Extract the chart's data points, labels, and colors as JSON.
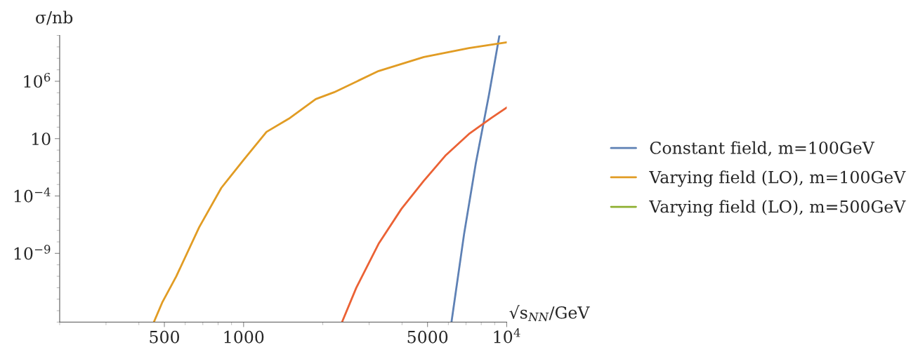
{
  "chart_data": {
    "type": "line",
    "xlabel": "√s$_{NN}$/GeV",
    "ylabel": "σ/nb",
    "log": "xy",
    "xlim": [
      200,
      10000
    ],
    "ylim": [
      1e-15,
      10000000000.0
    ],
    "xticks": [
      500,
      1000,
      5000,
      {
        "value": 10000,
        "label": "10$^{4}$"
      }
    ],
    "yticks": [
      {
        "value": 1000000.0,
        "label": "10$^{6}$"
      },
      10,
      {
        "value": 0.0001,
        "label": "10$^{−4}$"
      },
      {
        "value": 1e-09,
        "label": "10$^{−9}$"
      }
    ],
    "grid": false,
    "legend": "right",
    "marker": "none",
    "line_style": "solid",
    "series": [
      {
        "name": "Constant field, m=100GeV",
        "color": "#5e81b5",
        "x": [
          6166,
          6885,
          7620,
          8570,
          9380
        ],
        "values": [
          1e-15,
          4.8e-08,
          0.06,
          76000.0,
          10000000000.0
        ]
      },
      {
        "name": "Varying field (LO), m=100GeV",
        "color": "#e19c24",
        "x": [
          456,
          492,
          555,
          678,
          823,
          1000,
          1222,
          1486,
          1880,
          2206,
          3258,
          4841,
          7180,
          10000
        ],
        "values": [
          1e-15,
          5.9e-14,
          1e-11,
          1.9e-07,
          0.00051,
          0.14,
          39,
          550,
          28000.0,
          110000.0,
          7800000.0,
          130000000.0,
          790000000.0,
          2500000000.0
        ]
      },
      {
        "name": "Varying field (LO), m=500GeV",
        "color": "#8fb032"
      },
      {
        "color": "#eb6235",
        "x": [
          2366,
          2680,
          3258,
          3981,
          4841,
          5875,
          7180,
          8730,
          10000
        ],
        "values": [
          1e-15,
          9.8e-13,
          6.8e-09,
          7.6e-06,
          0.0021,
          0.37,
          25,
          630,
          5200
        ]
      }
    ]
  }
}
